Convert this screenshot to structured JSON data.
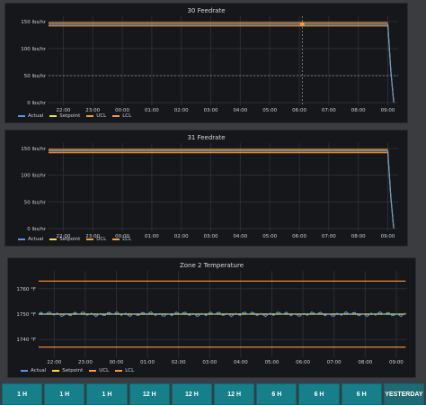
{
  "chart_data": [
    {
      "type": "line",
      "title": "30 Feedrate",
      "y_ticks": [
        "150 lbs/hr",
        "100 lbs/hr",
        "50 lbs/hr",
        "0 lbs/hr"
      ],
      "y_tick_values": [
        150,
        100,
        50,
        0
      ],
      "ylim": [
        -5,
        160
      ],
      "x_ticks": [
        "22:00",
        "23:00",
        "00:00",
        "01:00",
        "02:00",
        "03:00",
        "04:00",
        "05:00",
        "06:00",
        "07:00",
        "08:00",
        "09:00"
      ],
      "xlim": [
        21.5,
        33.35
      ],
      "legend": [
        "Actual",
        "Setpoint",
        "UCL",
        "LCL"
      ],
      "colors": {
        "Actual": "#5794f2",
        "Setpoint": "#fade2a",
        "UCL": "#ff9830",
        "LCL": "#ff9830"
      },
      "series": [
        {
          "name": "Actual",
          "x": [
            21.5,
            33.0,
            33.1,
            33.2
          ],
          "y": [
            145,
            145,
            60,
            0
          ]
        },
        {
          "name": "Setpoint",
          "x": [
            21.5,
            33.0,
            33.1,
            33.2
          ],
          "y": [
            145,
            145,
            60,
            0
          ]
        },
        {
          "name": "UCL",
          "x": [
            21.5,
            33.0
          ],
          "y": [
            148,
            148
          ]
        },
        {
          "name": "LCL",
          "x": [
            21.5,
            33.0
          ],
          "y": [
            142,
            142
          ]
        }
      ],
      "crosshair": {
        "x": 30.1,
        "y": 145
      }
    },
    {
      "type": "line",
      "title": "31 Feedrate",
      "y_ticks": [
        "150 lbs/hr",
        "100 lbs/hr",
        "50 lbs/hr",
        "0 lbs/hr"
      ],
      "y_tick_values": [
        150,
        100,
        50,
        0
      ],
      "ylim": [
        -5,
        160
      ],
      "x_ticks": [
        "22:00",
        "23:00",
        "00:00",
        "01:00",
        "02:00",
        "03:00",
        "04:00",
        "05:00",
        "06:00",
        "07:00",
        "08:00",
        "09:00"
      ],
      "xlim": [
        21.5,
        33.35
      ],
      "legend": [
        "Actual",
        "Setpoint",
        "UCL",
        "LCL"
      ],
      "colors": {
        "Actual": "#5794f2",
        "Setpoint": "#fade2a",
        "UCL": "#ff9830",
        "LCL": "#ff9830"
      },
      "series": [
        {
          "name": "Actual",
          "x": [
            21.5,
            33.0,
            33.1,
            33.2
          ],
          "y": [
            145,
            145,
            60,
            0
          ]
        },
        {
          "name": "Setpoint",
          "x": [
            21.5,
            33.0,
            33.1,
            33.2
          ],
          "y": [
            145,
            145,
            60,
            0
          ]
        },
        {
          "name": "UCL",
          "x": [
            21.5,
            33.0
          ],
          "y": [
            148,
            148
          ]
        },
        {
          "name": "LCL",
          "x": [
            21.5,
            33.0
          ],
          "y": [
            142,
            142
          ]
        }
      ]
    },
    {
      "type": "line",
      "title": "Zone 2 Temperature",
      "y_ticks": [
        "1760 °F",
        "1750 °F",
        "1740 °F"
      ],
      "y_tick_values": [
        1760,
        1750,
        1740
      ],
      "ylim": [
        1733,
        1767
      ],
      "x_ticks": [
        "22:00",
        "23:00",
        "00:00",
        "01:00",
        "02:00",
        "03:00",
        "04:00",
        "05:00",
        "06:00",
        "07:00",
        "08:00",
        "09:00"
      ],
      "xlim": [
        21.5,
        33.35
      ],
      "legend": [
        "Actual",
        "Setpoint",
        "UCL",
        "LCL"
      ],
      "colors": {
        "Actual": "#5794f2",
        "Setpoint": "#fade2a",
        "UCL": "#ff9830",
        "LCL": "#ff9830"
      },
      "series": [
        {
          "name": "Actual",
          "noise": 0.6,
          "x": [
            21.5,
            33.3
          ],
          "y": [
            1750,
            1750
          ]
        },
        {
          "name": "Setpoint",
          "x": [
            21.5,
            33.3
          ],
          "y": [
            1750,
            1750
          ]
        },
        {
          "name": "UCL",
          "x": [
            21.5,
            33.3
          ],
          "y": [
            1763,
            1763
          ]
        },
        {
          "name": "LCL",
          "x": [
            21.5,
            33.3
          ],
          "y": [
            1737,
            1737
          ]
        }
      ]
    }
  ],
  "buttons": [
    "1 H",
    "1 H",
    "1 H",
    "12 H",
    "12 H",
    "12 H",
    "6 H",
    "6 H",
    "6 H",
    "YESTERDAY"
  ]
}
